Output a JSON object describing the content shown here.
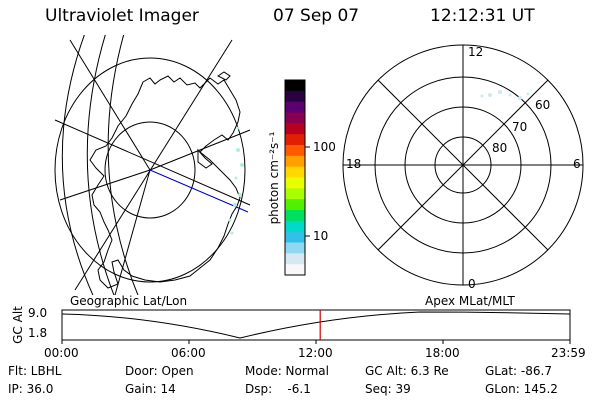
{
  "header": {
    "title": "Ultraviolet Imager",
    "date": "07 Sep 07",
    "time": "12:12:31 UT"
  },
  "colorbar": {
    "unit_label": "photon cm⁻²s⁻¹",
    "ticks": [
      {
        "label": "100",
        "value": 100
      },
      {
        "label": "10",
        "value": 10
      }
    ],
    "colors": [
      "#000000",
      "#2a0040",
      "#5a0070",
      "#8a0050",
      "#b80020",
      "#e02000",
      "#ff5a00",
      "#ffa000",
      "#ffd800",
      "#e8ff00",
      "#a8ff00",
      "#50f000",
      "#00e060",
      "#00d8c8",
      "#30c0e8",
      "#90d8f0",
      "#d8e8f0",
      "#f8f8f8"
    ]
  },
  "geo_panel": {
    "caption": "Geographic Lat/Lon"
  },
  "polar_panel": {
    "caption": "Apex MLat/MLT",
    "mlt_labels": [
      {
        "label": "12",
        "pos": "top"
      },
      {
        "label": "18",
        "pos": "left"
      },
      {
        "label": "6",
        "pos": "right"
      },
      {
        "label": "0",
        "pos": "bottom"
      }
    ],
    "lat_labels": [
      {
        "label": "60",
        "lat": 60
      },
      {
        "label": "70",
        "lat": 70
      },
      {
        "label": "80",
        "lat": 80
      }
    ]
  },
  "timeline": {
    "y_label": "GC Alt",
    "y_ticks": [
      "9.0",
      "1.8"
    ],
    "x_ticks": [
      "00:00",
      "06:00",
      "12:00",
      "18:00",
      "23:59"
    ],
    "marker_time_hours": 12.2
  },
  "info": {
    "row1": {
      "flt": "Flt: LBHL",
      "door": "Door: Open",
      "mode": "Mode: Normal",
      "gcalt": "GC Alt: 6.3 Re",
      "glat": "GLat: -86.7"
    },
    "row2": {
      "ip": "IP: 36.0",
      "gain": "Gain: 14",
      "dsp": "Dsp:    -6.1",
      "seq": "Seq: 39",
      "glon": "GLon: 145.2"
    }
  }
}
